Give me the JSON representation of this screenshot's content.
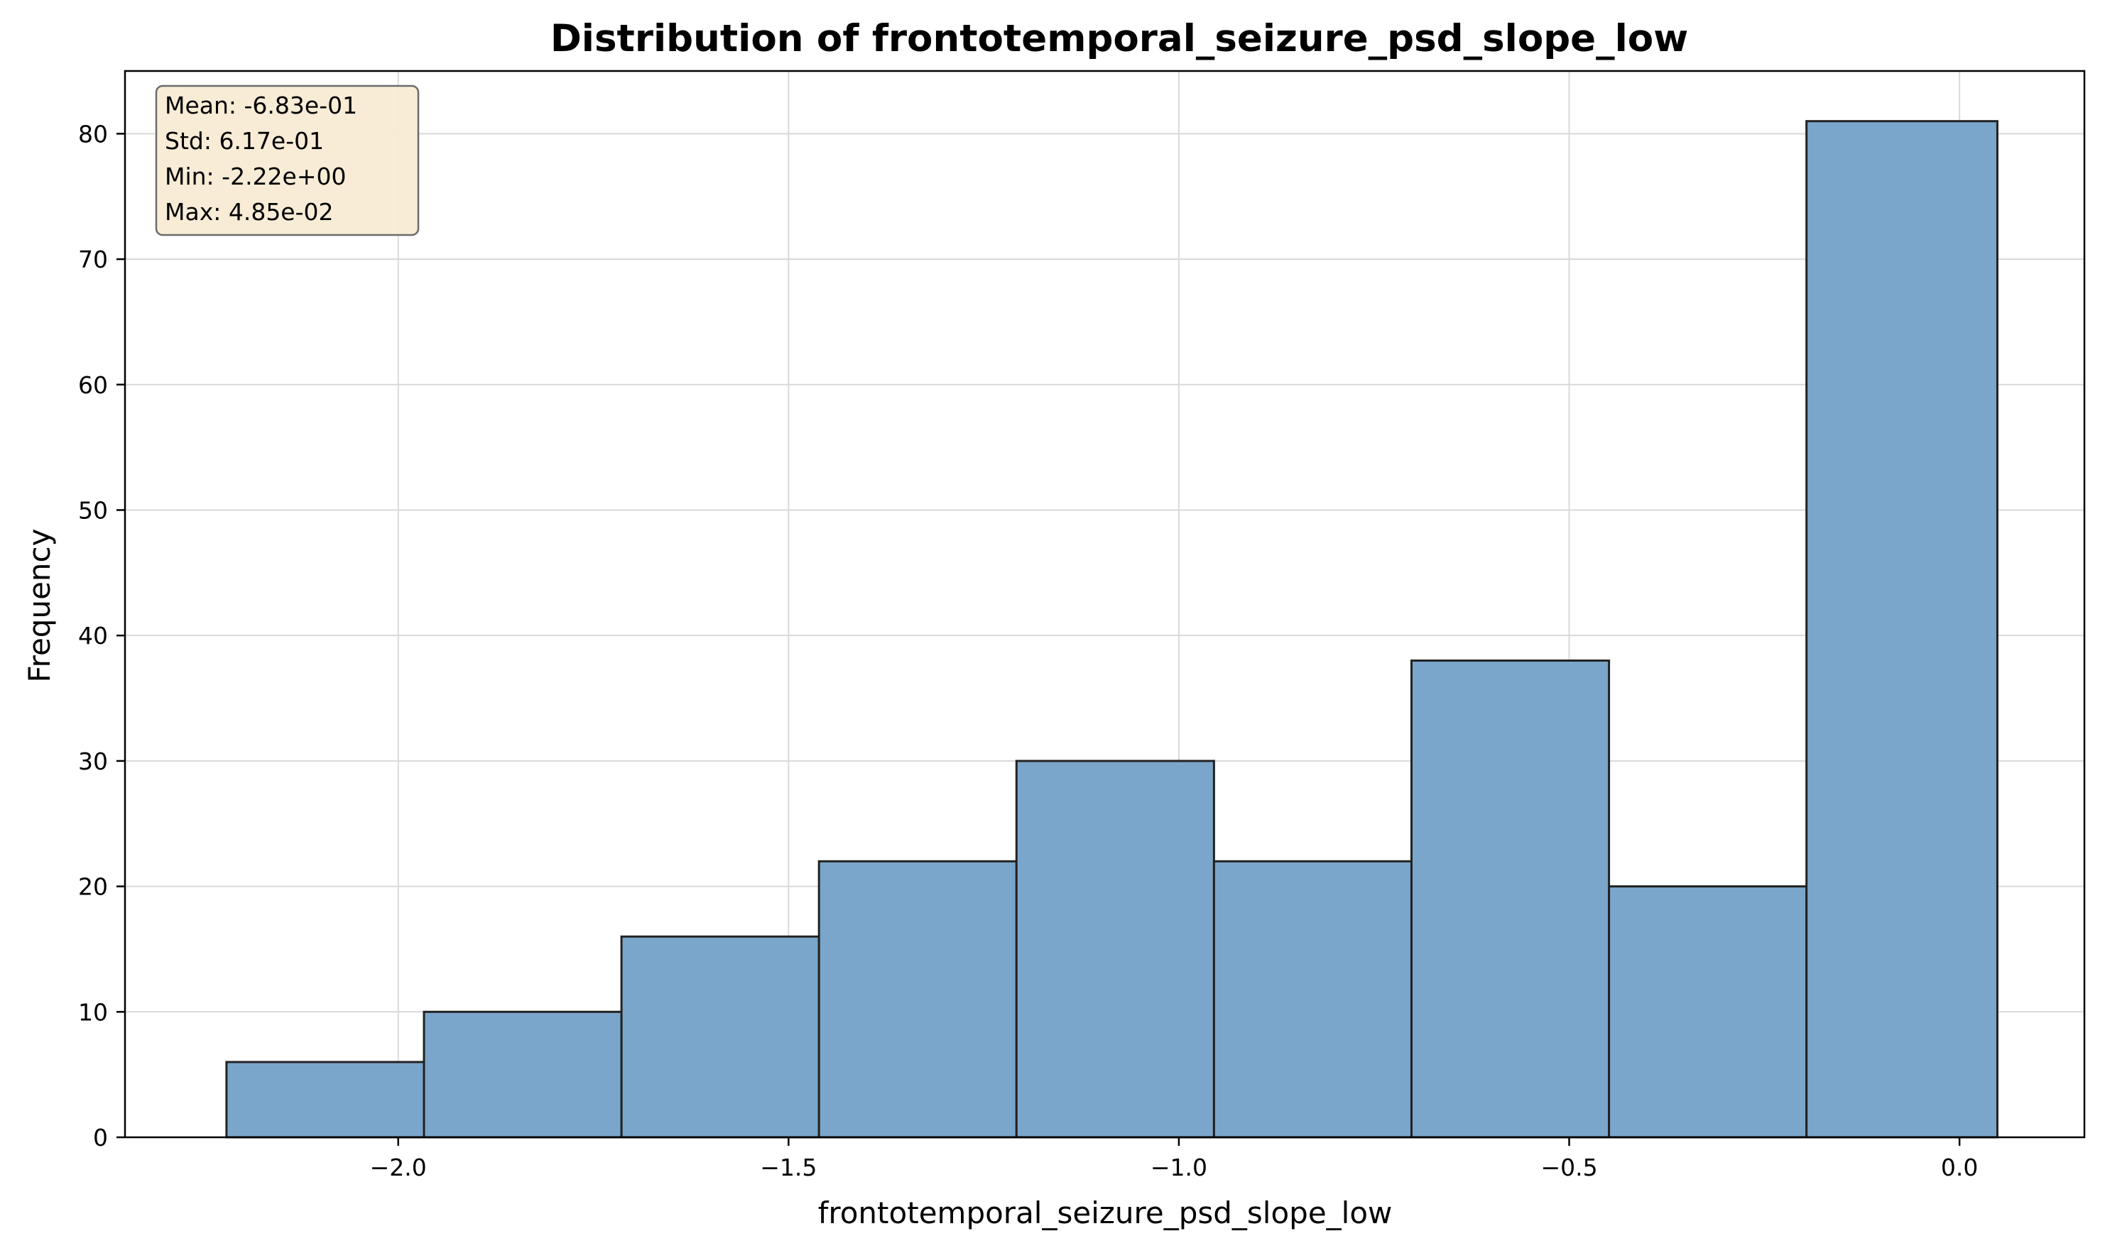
{
  "chart_data": {
    "type": "bar",
    "subtype": "histogram",
    "title": "Distribution of frontotemporal_seizure_psd_slope_low",
    "xlabel": "frontotemporal_seizure_psd_slope_low",
    "ylabel": "Frequency",
    "xlim": [
      -2.35,
      0.16
    ],
    "ylim": [
      0,
      85
    ],
    "x_ticks": [
      -2.0,
      -1.5,
      -1.0,
      -0.5,
      0.0
    ],
    "x_tick_labels": [
      "−2.0",
      "−1.5",
      "−1.0",
      "−0.5",
      "0.0"
    ],
    "y_ticks": [
      0,
      10,
      20,
      30,
      40,
      50,
      60,
      70,
      80
    ],
    "y_tick_labels": [
      "0",
      "10",
      "20",
      "30",
      "40",
      "50",
      "60",
      "70",
      "80"
    ],
    "bin_edges": [
      -2.22,
      -1.967,
      -1.714,
      -1.461,
      -1.208,
      -0.955,
      -0.702,
      -0.449,
      -0.196,
      0.0485
    ],
    "values": [
      6,
      10,
      16,
      22,
      30,
      22,
      38,
      20,
      81
    ],
    "grid": true,
    "bar_color": "#7BA6CB",
    "edge_color": "#222222",
    "stats_box": {
      "lines": [
        "Mean: -6.83e-01",
        "Std: 6.17e-01",
        "Min: -2.22e+00",
        "Max: 4.85e-02"
      ],
      "position": "top-left",
      "background": "#F8EBD4"
    }
  }
}
